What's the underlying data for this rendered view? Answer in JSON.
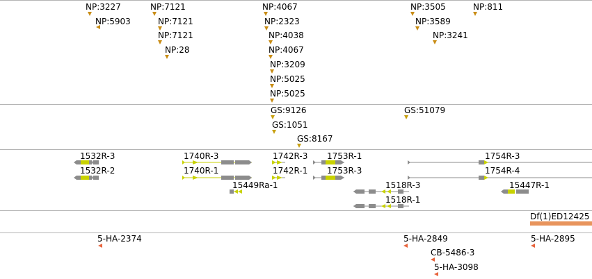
{
  "np_track": [
    {
      "label": "NP:3227"
    },
    {
      "label": "NP:5903"
    },
    {
      "label": "NP:7121"
    },
    {
      "label": "NP:7121"
    },
    {
      "label": "NP:7121"
    },
    {
      "label": "NP:28"
    },
    {
      "label": "NP:4067"
    },
    {
      "label": "NP:2323"
    },
    {
      "label": "NP:4038"
    },
    {
      "label": "NP:4067"
    },
    {
      "label": "NP:3209"
    },
    {
      "label": "NP:5025"
    },
    {
      "label": "NP:5025"
    },
    {
      "label": "NP:3505"
    },
    {
      "label": "NP:3589"
    },
    {
      "label": "NP:3241"
    },
    {
      "label": "NP:811"
    }
  ],
  "gs_track": [
    {
      "label": "GS:9126"
    },
    {
      "label": "GS:1051"
    },
    {
      "label": "GS:8167"
    },
    {
      "label": "GS:51079"
    }
  ],
  "gene_track": [
    {
      "label": "1532R-3"
    },
    {
      "label": "1532R-2"
    },
    {
      "label": "1740R-3"
    },
    {
      "label": "1740R-1"
    },
    {
      "label": "15449Ra-1"
    },
    {
      "label": "1742R-3"
    },
    {
      "label": "1742R-1"
    },
    {
      "label": "1753R-1"
    },
    {
      "label": "1753R-3"
    },
    {
      "label": "1518R-3"
    },
    {
      "label": "1518R-1"
    },
    {
      "label": "1754R-3"
    },
    {
      "label": "1754R-4"
    },
    {
      "label": "15447R-1"
    }
  ],
  "df_track": [
    {
      "label": "Df(1)ED12425"
    }
  ],
  "ha_track": [
    {
      "label": "5-HA-2374"
    },
    {
      "label": "5-HA-2849"
    },
    {
      "label": "CB-5486-3"
    },
    {
      "label": "5-HA-3098"
    },
    {
      "label": "5-HA-2895"
    }
  ],
  "colors": {
    "divider": "#b4b4b4",
    "np_marker": "#c88c14",
    "gene_intron": "#8c8c8c",
    "gene_utr": "#8c8c8c",
    "gene_cds": "#c8d200",
    "deficiency": "#e8945c",
    "ha_marker": "#e8643c"
  }
}
